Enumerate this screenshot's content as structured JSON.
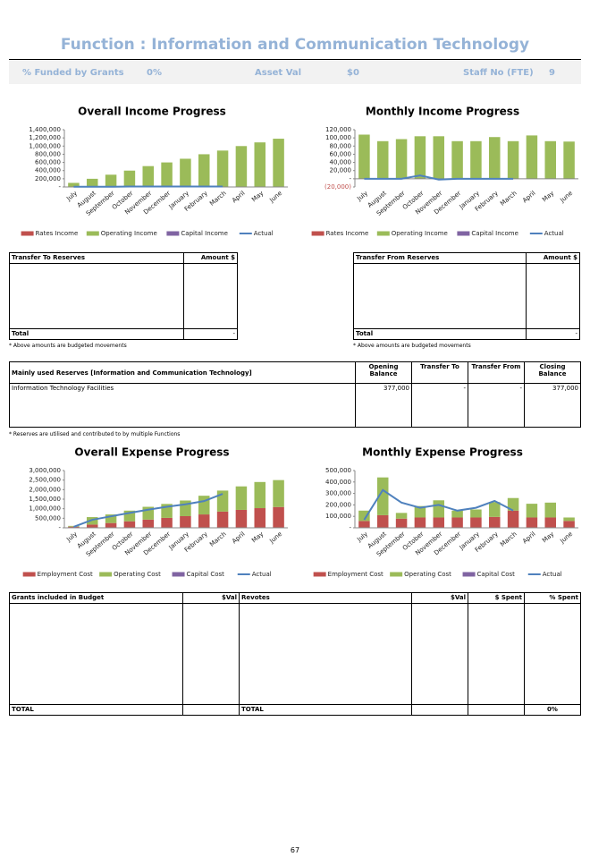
{
  "header": {
    "title": "Function : Information and Communication Technology",
    "grants_label": "% Funded by Grants",
    "grants_value": "0%",
    "asset_label": "Asset Val",
    "asset_value": "$0",
    "staff_label": "Staff No (FTE)",
    "staff_value": "9"
  },
  "chart_data": [
    {
      "type": "bar",
      "stacked": true,
      "title": "Overall Income Progress",
      "categories": [
        "July",
        "August",
        "September",
        "October",
        "November",
        "December",
        "January",
        "February",
        "March",
        "April",
        "May",
        "June"
      ],
      "ylim": [
        0,
        1400000
      ],
      "yticks": [
        {
          "value": 0,
          "label": "-"
        },
        {
          "value": 200000,
          "label": "200,000"
        },
        {
          "value": 400000,
          "label": "400,000"
        },
        {
          "value": 600000,
          "label": "600,000"
        },
        {
          "value": 800000,
          "label": "800,000"
        },
        {
          "value": 1000000,
          "label": "1,000,000"
        },
        {
          "value": 1200000,
          "label": "1,200,000"
        },
        {
          "value": 1400000,
          "label": "1,400,000"
        }
      ],
      "series": [
        {
          "name": "Rates Income",
          "color": "#c0504d",
          "values": [
            0,
            0,
            0,
            0,
            0,
            0,
            0,
            0,
            0,
            0,
            0,
            0
          ]
        },
        {
          "name": "Operating Income",
          "color": "#9bbb59",
          "values": [
            100000,
            200000,
            300000,
            400000,
            510000,
            600000,
            690000,
            800000,
            890000,
            1000000,
            1090000,
            1180000
          ]
        },
        {
          "name": "Capital Income",
          "color": "#8064a2",
          "values": [
            0,
            0,
            0,
            0,
            0,
            0,
            0,
            0,
            0,
            0,
            0,
            0
          ]
        },
        {
          "name": "Actual",
          "type": "line",
          "color": "#4f81bd",
          "values": [
            5000,
            5000,
            5000,
            10000,
            10000,
            10000,
            10000,
            10000,
            10000,
            null,
            null,
            null
          ]
        }
      ]
    },
    {
      "type": "bar",
      "stacked": true,
      "title": "Monthly Income Progress",
      "categories": [
        "July",
        "August",
        "September",
        "October",
        "November",
        "December",
        "January",
        "February",
        "March",
        "April",
        "May",
        "June"
      ],
      "ylim": [
        -20000,
        120000
      ],
      "yticks": [
        {
          "value": -20000,
          "label": "(20,000)"
        },
        {
          "value": 0,
          "label": "-"
        },
        {
          "value": 20000,
          "label": "20,000"
        },
        {
          "value": 40000,
          "label": "40,000"
        },
        {
          "value": 60000,
          "label": "60,000"
        },
        {
          "value": 80000,
          "label": "80,000"
        },
        {
          "value": 100000,
          "label": "100,000"
        },
        {
          "value": 120000,
          "label": "120,000"
        }
      ],
      "series": [
        {
          "name": "Rates Income",
          "color": "#c0504d",
          "values": [
            0,
            0,
            0,
            0,
            0,
            0,
            0,
            0,
            0,
            0,
            0,
            0
          ]
        },
        {
          "name": "Operating Income",
          "color": "#9bbb59",
          "values": [
            108000,
            92000,
            97000,
            104000,
            104000,
            92000,
            92000,
            102000,
            92000,
            106000,
            92000,
            91000
          ]
        },
        {
          "name": "Capital Income",
          "color": "#8064a2",
          "values": [
            0,
            0,
            0,
            0,
            0,
            0,
            0,
            0,
            0,
            0,
            0,
            0
          ]
        },
        {
          "name": "Actual",
          "type": "line",
          "color": "#4f81bd",
          "values": [
            0,
            0,
            0,
            8000,
            -2000,
            0,
            0,
            0,
            0,
            null,
            null,
            null
          ]
        }
      ]
    },
    {
      "type": "bar",
      "stacked": true,
      "title": "Overall Expense Progress",
      "categories": [
        "July",
        "August",
        "September",
        "October",
        "November",
        "December",
        "January",
        "February",
        "March",
        "April",
        "May",
        "June"
      ],
      "ylim": [
        0,
        3000000
      ],
      "yticks": [
        {
          "value": 0,
          "label": "-"
        },
        {
          "value": 500000,
          "label": "500,000"
        },
        {
          "value": 1000000,
          "label": "1,000,000"
        },
        {
          "value": 1500000,
          "label": "1,500,000"
        },
        {
          "value": 2000000,
          "label": "2,000,000"
        },
        {
          "value": 2500000,
          "label": "2,500,000"
        },
        {
          "value": 3000000,
          "label": "3,000,000"
        }
      ],
      "series": [
        {
          "name": "Employment Cost",
          "color": "#c0504d",
          "values": [
            60000,
            170000,
            250000,
            340000,
            430000,
            520000,
            610000,
            700000,
            850000,
            940000,
            1030000,
            1090000
          ]
        },
        {
          "name": "Operating Cost",
          "color": "#9bbb59",
          "values": [
            40000,
            390000,
            450000,
            560000,
            670000,
            730000,
            820000,
            980000,
            1100000,
            1230000,
            1370000,
            1410000
          ]
        },
        {
          "name": "Capital Cost",
          "color": "#8064a2",
          "values": [
            0,
            0,
            0,
            0,
            0,
            0,
            0,
            0,
            0,
            0,
            0,
            0
          ]
        },
        {
          "name": "Actual",
          "type": "line",
          "color": "#4f81bd",
          "values": [
            50000,
            420000,
            600000,
            780000,
            950000,
            1100000,
            1230000,
            1400000,
            1780000,
            null,
            null,
            null
          ]
        }
      ]
    },
    {
      "type": "bar",
      "stacked": true,
      "title": "Monthly Expense Progress",
      "categories": [
        "July",
        "August",
        "September",
        "October",
        "November",
        "December",
        "January",
        "February",
        "March",
        "April",
        "May",
        "June"
      ],
      "ylim": [
        0,
        500000
      ],
      "yticks": [
        {
          "value": 0,
          "label": "-"
        },
        {
          "value": 100000,
          "label": "100,000"
        },
        {
          "value": 200000,
          "label": "200,000"
        },
        {
          "value": 300000,
          "label": "300,000"
        },
        {
          "value": 400000,
          "label": "400,000"
        },
        {
          "value": 500000,
          "label": "500,000"
        }
      ],
      "series": [
        {
          "name": "Employment Cost",
          "color": "#c0504d",
          "values": [
            60000,
            110000,
            80000,
            90000,
            90000,
            90000,
            90000,
            95000,
            150000,
            90000,
            90000,
            60000
          ]
        },
        {
          "name": "Operating Cost",
          "color": "#9bbb59",
          "values": [
            90000,
            330000,
            50000,
            100000,
            150000,
            60000,
            70000,
            130000,
            110000,
            120000,
            130000,
            30000
          ]
        },
        {
          "name": "Capital Cost",
          "color": "#8064a2",
          "values": [
            0,
            0,
            0,
            0,
            0,
            0,
            0,
            0,
            0,
            0,
            0,
            0
          ]
        },
        {
          "name": "Actual",
          "type": "line",
          "color": "#4f81bd",
          "values": [
            70000,
            330000,
            220000,
            175000,
            200000,
            150000,
            175000,
            235000,
            150000,
            null,
            null,
            null
          ]
        }
      ]
    }
  ],
  "reserves_to": {
    "headers": [
      "Transfer To Reserves",
      "Amount $"
    ],
    "total": [
      "Total",
      "-"
    ],
    "note": "* Above amounts are budgeted movements"
  },
  "reserves_from": {
    "headers": [
      "Transfer From Reserves",
      "Amount $"
    ],
    "total": [
      "Total",
      "-"
    ],
    "note": "* Above amounts are budgeted movements"
  },
  "reserves": {
    "headers": [
      "Mainly used Reserves [Information and Communication Technology]",
      "Opening Balance",
      "Transfer To",
      "Transfer From",
      "Closing Balance"
    ],
    "rows": [
      [
        "Information Technology Facilities",
        "377,000",
        "-",
        "-",
        "377,000"
      ]
    ],
    "note": "* Reserves are utilised and contributed to by multiple Functions"
  },
  "grants": {
    "headers": [
      "Grants included in Budget",
      "$Val",
      "Revotes",
      "$Val",
      "$ Spent",
      "% Spent"
    ],
    "total": {
      "grants": "TOTAL",
      "revotes": "TOTAL",
      "spent_pct": "0%"
    }
  },
  "page_number": "67"
}
